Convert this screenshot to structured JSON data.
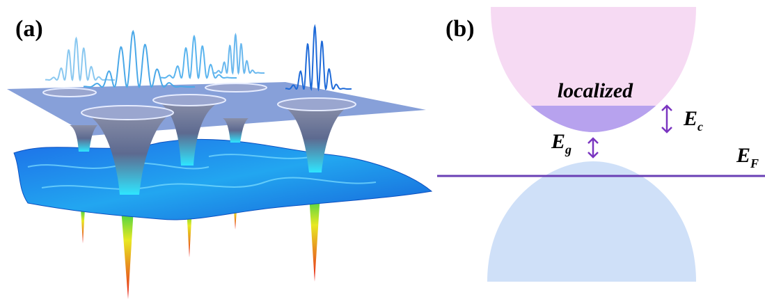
{
  "panels": [
    {
      "label": "(a)"
    },
    {
      "label": "(b)",
      "band_label": "localized",
      "gap": {
        "symbol": "E",
        "subscript": "g"
      },
      "mobility_edge": {
        "symbol": "E",
        "subscript": "c"
      },
      "fermi_level": {
        "symbol": "E",
        "subscript": "F"
      }
    }
  ]
}
